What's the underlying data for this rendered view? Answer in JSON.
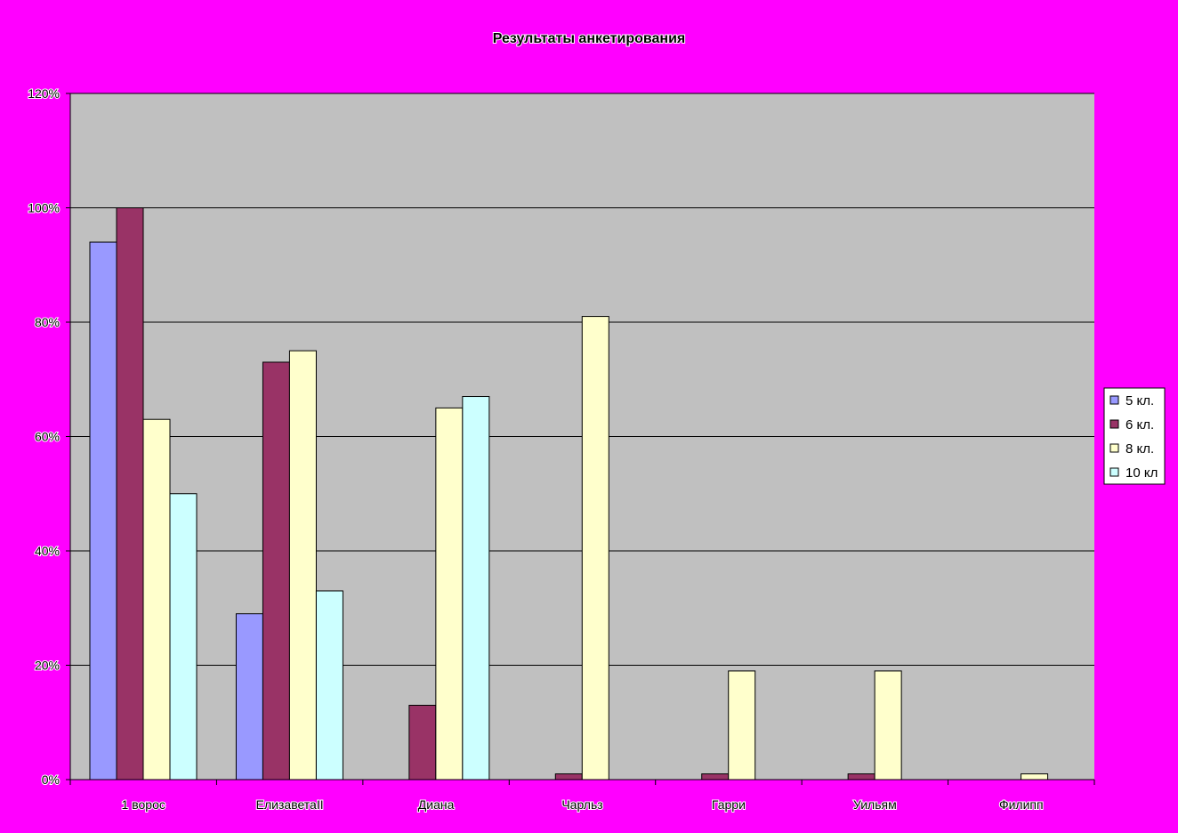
{
  "chart_data": {
    "type": "bar",
    "title": "Результаты анкетирования",
    "xlabel": "",
    "ylabel": "",
    "categories": [
      "1 ворос",
      "ЕлизаветаII",
      "Диана",
      "Чарльз",
      "Гарри",
      "Уильям",
      "Филипп"
    ],
    "y_ticks": [
      "0%",
      "20%",
      "40%",
      "60%",
      "80%",
      "100%",
      "120%"
    ],
    "ylim": [
      0,
      120
    ],
    "grid": true,
    "legend_position": "right",
    "series": [
      {
        "name": "5 кл.",
        "color": "#9999ff",
        "values": [
          94,
          29,
          0,
          0,
          0,
          0,
          0
        ]
      },
      {
        "name": "6 кл.",
        "color": "#993366",
        "values": [
          100,
          73,
          13,
          1,
          1,
          1,
          0
        ]
      },
      {
        "name": "8 кл.",
        "color": "#ffffcc",
        "values": [
          63,
          75,
          65,
          81,
          19,
          19,
          1
        ]
      },
      {
        "name": "10 кл",
        "color": "#ccffff",
        "values": [
          50,
          33,
          67,
          0,
          0,
          0,
          0
        ]
      }
    ],
    "plot_background": "#c0c0c0",
    "page_background": "#ff00ff"
  }
}
